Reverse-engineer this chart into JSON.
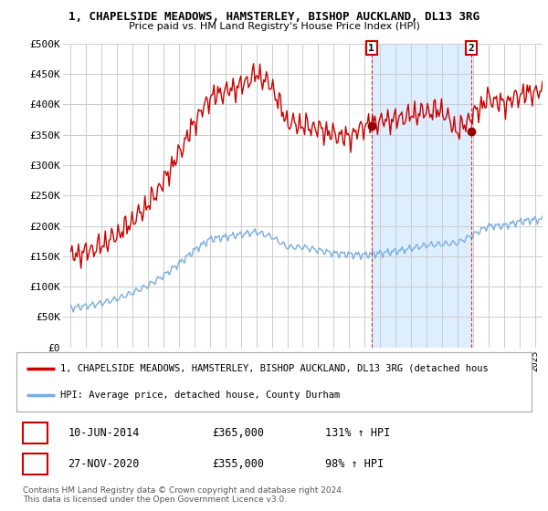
{
  "title": "1, CHAPELSIDE MEADOWS, HAMSTERLEY, BISHOP AUCKLAND, DL13 3RG",
  "subtitle": "Price paid vs. HM Land Registry's House Price Index (HPI)",
  "legend_line1": "1, CHAPELSIDE MEADOWS, HAMSTERLEY, BISHOP AUCKLAND, DL13 3RG (detached hous",
  "legend_line2": "HPI: Average price, detached house, County Durham",
  "sale1_date": "10-JUN-2014",
  "sale1_price": "£365,000",
  "sale1_hpi": "131% ↑ HPI",
  "sale1_year": 2014.44,
  "sale1_value": 365000,
  "sale2_date": "27-NOV-2020",
  "sale2_price": "£355,000",
  "sale2_hpi": "98% ↑ HPI",
  "sale2_year": 2020.9,
  "sale2_value": 355000,
  "footer": "Contains HM Land Registry data © Crown copyright and database right 2024.\nThis data is licensed under the Open Government Licence v3.0.",
  "ylim": [
    0,
    500000
  ],
  "yticks": [
    0,
    50000,
    100000,
    150000,
    200000,
    250000,
    300000,
    350000,
    400000,
    450000,
    500000
  ],
  "ytick_labels": [
    "£0",
    "£50K",
    "£100K",
    "£150K",
    "£200K",
    "£250K",
    "£300K",
    "£350K",
    "£400K",
    "£450K",
    "£500K"
  ],
  "xlim": [
    1994.5,
    2025.5
  ],
  "red_color": "#cc0000",
  "blue_color": "#7aade0",
  "shade_color": "#ddeeff",
  "marker_color": "#990000",
  "dashed_color": "#cc0000",
  "bg_color": "#ffffff",
  "grid_color": "#cccccc"
}
